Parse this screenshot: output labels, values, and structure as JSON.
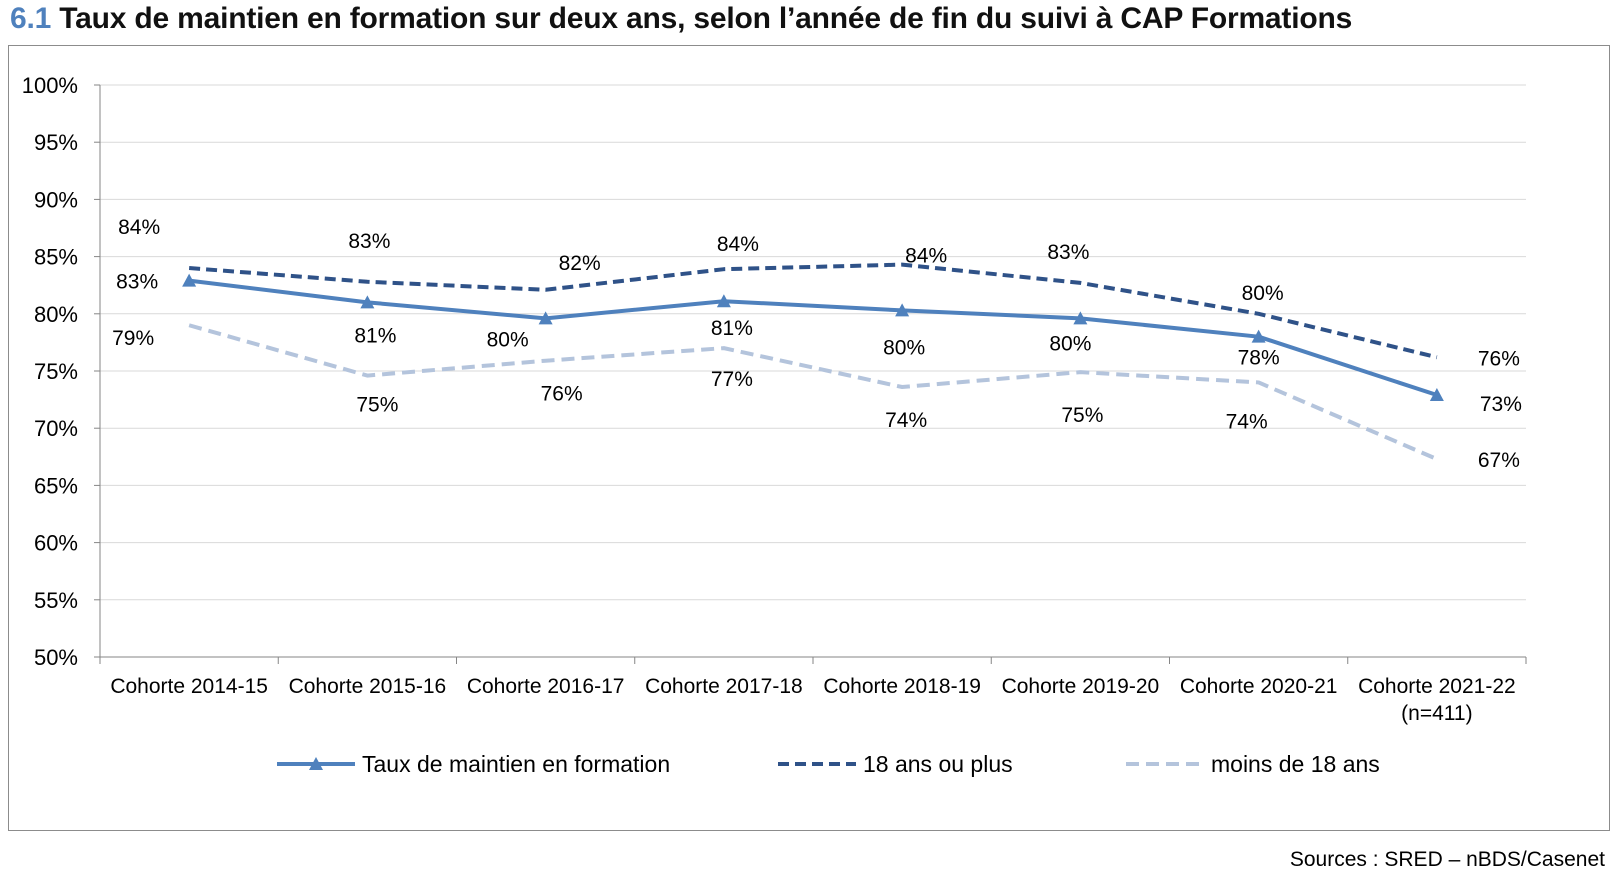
{
  "title": {
    "number": "6.1",
    "text": "Taux de maintien en formation sur deux ans, selon l’année de fin du suivi à CAP Formations"
  },
  "source": "Sources : SRED – nBDS/Casenet",
  "chart_data": {
    "type": "line",
    "title": "Taux de maintien en formation sur deux ans, selon l’année de fin du suivi à CAP Formations",
    "categories": [
      "Cohorte 2014-15",
      "Cohorte 2015-16",
      "Cohorte 2016-17",
      "Cohorte 2017-18",
      "Cohorte 2018-19",
      "Cohorte 2019-20",
      "Cohorte 2020-21",
      "Cohorte 2021-22"
    ],
    "category_notes": [
      "",
      "",
      "",
      "",
      "",
      "",
      "",
      "(n=411)"
    ],
    "ylim": [
      50,
      100
    ],
    "yticks": [
      100,
      95,
      90,
      85,
      80,
      75,
      70,
      65,
      60,
      55,
      50
    ],
    "ytick_labels": [
      "100%",
      "95%",
      "90%",
      "85%",
      "80%",
      "75%",
      "70%",
      "65%",
      "60%",
      "55%",
      "50%"
    ],
    "grid": true,
    "legend_position": "bottom",
    "series": [
      {
        "name": "Taux de maintien en formation",
        "color": "#4f81bd",
        "style": "solid",
        "marker": "triangle",
        "values": [
          82.9,
          81.0,
          79.6,
          81.1,
          80.3,
          79.6,
          78.0,
          72.9
        ],
        "labels": [
          "83%",
          "81%",
          "80%",
          "81%",
          "80%",
          "80%",
          "78%",
          "73%"
        ]
      },
      {
        "name": "18 ans ou plus",
        "color": "#2f5288",
        "style": "dashed",
        "marker": "none",
        "values": [
          84.0,
          82.8,
          82.1,
          83.9,
          84.3,
          82.7,
          80.0,
          76.2
        ],
        "labels": [
          "84%",
          "83%",
          "82%",
          "84%",
          "84%",
          "83%",
          "80%",
          "76%"
        ]
      },
      {
        "name": "moins de 18 ans",
        "color": "#b4c4dc",
        "style": "dashed",
        "marker": "none",
        "values": [
          79.0,
          74.6,
          75.9,
          77.0,
          73.6,
          74.9,
          74.0,
          67.3
        ],
        "labels": [
          "79%",
          "75%",
          "76%",
          "77%",
          "74%",
          "75%",
          "74%",
          "67%"
        ]
      }
    ]
  }
}
